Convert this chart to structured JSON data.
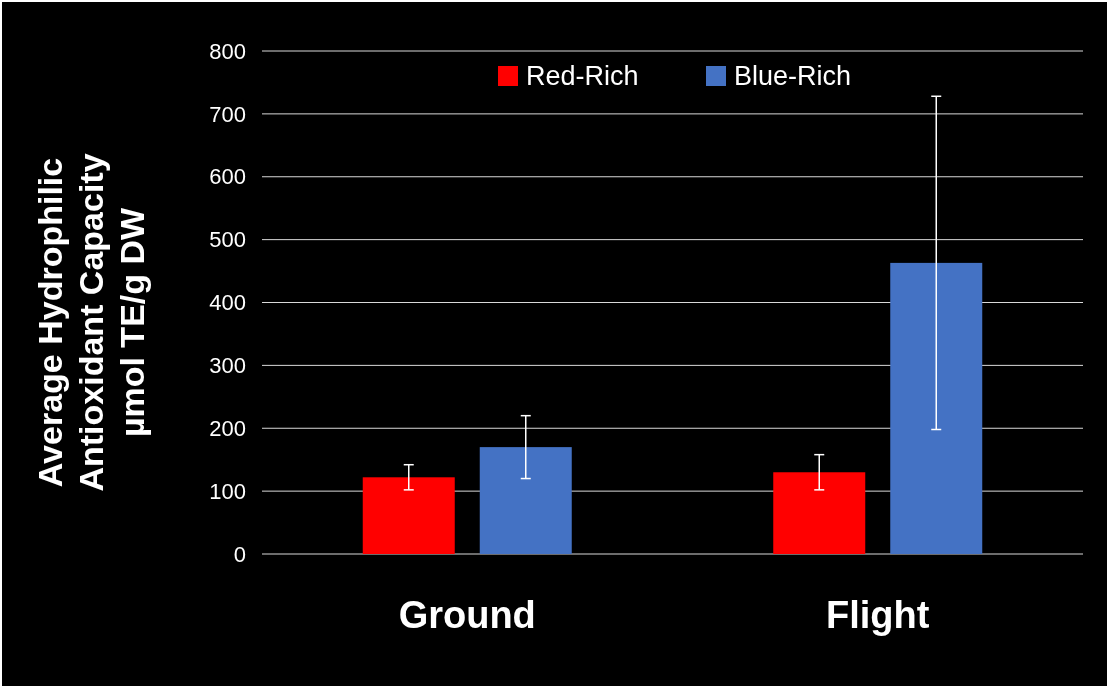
{
  "chart_data": {
    "type": "bar",
    "ylabel": "Average Hydrophilic\nAntioxidant Capacity\nµmol TE/g DW",
    "categories": [
      "Ground",
      "Flight"
    ],
    "series": [
      {
        "name": "Red-Rich",
        "color": "#ff0000",
        "values": [
          122,
          130
        ],
        "errors": [
          20,
          28
        ]
      },
      {
        "name": "Blue-Rich",
        "color": "#4472c4",
        "values": [
          170,
          463
        ],
        "errors": [
          50,
          265
        ]
      }
    ],
    "ylim": [
      0,
      800
    ],
    "yticks": [
      0,
      100,
      200,
      300,
      400,
      500,
      600,
      700,
      800
    ],
    "grid": "y",
    "legend": "top"
  }
}
